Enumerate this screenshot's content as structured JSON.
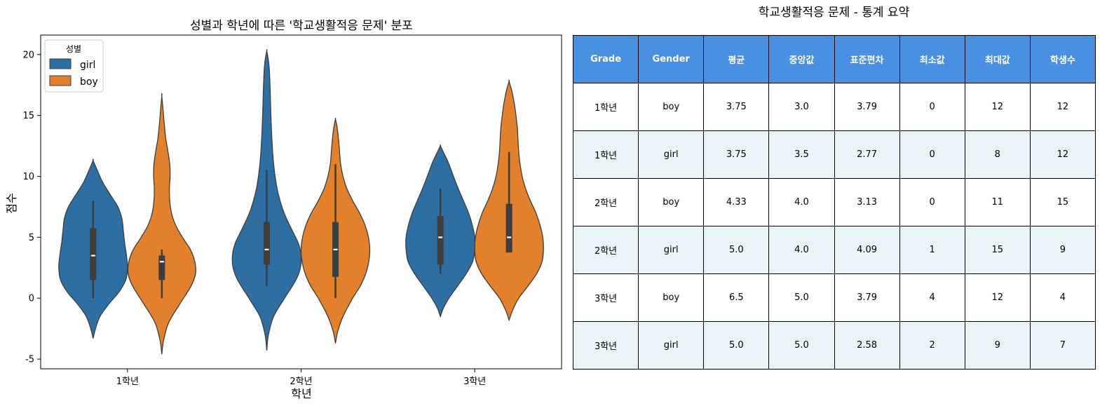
{
  "chart_data": [
    {
      "type": "violin",
      "title": "성별과 학년에 따른 '학교생활적응 문제' 분포",
      "xlabel": "학년",
      "ylabel": "점수",
      "categories": [
        "1학년",
        "2학년",
        "3학년"
      ],
      "ylim": [
        -5.8,
        21.6
      ],
      "yticks": [
        -5,
        0,
        5,
        10,
        15,
        20
      ],
      "grid": false,
      "legend": {
        "title": "성별",
        "placement": "top-left"
      },
      "series": [
        {
          "name": "girl",
          "color": "#2e6fa3",
          "groups": [
            {
              "category": "1학년",
              "min": 0,
              "q1": 1.5,
              "median": 3.5,
              "q3": 5.75,
              "max": 8,
              "kde_range": [
                -3.3,
                11.3
              ],
              "profile": [
                [
                  -3.3,
                  0
                ],
                [
                  -2.5,
                  0.07
                ],
                [
                  -1.5,
                  0.2
                ],
                [
                  -0.5,
                  0.45
                ],
                [
                  0.5,
                  0.75
                ],
                [
                  1.5,
                  0.95
                ],
                [
                  2.5,
                  1.0
                ],
                [
                  3.5,
                  0.97
                ],
                [
                  4.5,
                  0.92
                ],
                [
                  5.5,
                  0.88
                ],
                [
                  6.5,
                  0.84
                ],
                [
                  7.5,
                  0.72
                ],
                [
                  8.5,
                  0.5
                ],
                [
                  9.5,
                  0.28
                ],
                [
                  10.5,
                  0.12
                ],
                [
                  11.3,
                  0
                ]
              ]
            },
            {
              "category": "2학년",
              "min": 1,
              "q1": 2.75,
              "median": 4.0,
              "q3": 6.25,
              "max": 10.5,
              "kde_range": [
                -4.3,
                20.3
              ],
              "profile": [
                [
                  -4.3,
                  0
                ],
                [
                  -3,
                  0.05
                ],
                [
                  -1.5,
                  0.2
                ],
                [
                  0,
                  0.52
                ],
                [
                  1.5,
                  0.85
                ],
                [
                  2.5,
                  0.98
                ],
                [
                  3.5,
                  1.0
                ],
                [
                  4.5,
                  0.92
                ],
                [
                  5.5,
                  0.75
                ],
                [
                  6.5,
                  0.58
                ],
                [
                  7.5,
                  0.44
                ],
                [
                  9,
                  0.3
                ],
                [
                  11,
                  0.2
                ],
                [
                  13,
                  0.15
                ],
                [
                  15,
                  0.12
                ],
                [
                  17,
                  0.1
                ],
                [
                  18.5,
                  0.08
                ],
                [
                  19.5,
                  0.05
                ],
                [
                  20.3,
                  0
                ]
              ]
            },
            {
              "category": "3학년",
              "min": 2,
              "q1": 2.75,
              "median": 5.0,
              "q3": 6.75,
              "max": 9,
              "kde_range": [
                -1.5,
                12.5
              ],
              "profile": [
                [
                  -1.5,
                  0
                ],
                [
                  -0.8,
                  0.09
                ],
                [
                  0,
                  0.25
                ],
                [
                  1,
                  0.5
                ],
                [
                  2,
                  0.75
                ],
                [
                  3,
                  0.94
                ],
                [
                  4,
                  1.0
                ],
                [
                  5,
                  1.0
                ],
                [
                  6,
                  0.93
                ],
                [
                  7,
                  0.82
                ],
                [
                  8,
                  0.67
                ],
                [
                  9,
                  0.52
                ],
                [
                  10,
                  0.38
                ],
                [
                  11,
                  0.25
                ],
                [
                  11.8,
                  0.12
                ],
                [
                  12.5,
                  0
                ]
              ]
            }
          ]
        },
        {
          "name": "boy",
          "color": "#e3802c",
          "groups": [
            {
              "category": "1학년",
              "min": 0,
              "q1": 1.5,
              "median": 3.0,
              "q3": 3.5,
              "max": 4,
              "kde_range": [
                -4.6,
                16.6
              ],
              "profile": [
                [
                  -4.6,
                  0
                ],
                [
                  -3.5,
                  0.05
                ],
                [
                  -2,
                  0.2
                ],
                [
                  -0.5,
                  0.52
                ],
                [
                  1,
                  0.85
                ],
                [
                  2,
                  0.98
                ],
                [
                  3,
                  0.96
                ],
                [
                  4,
                  0.83
                ],
                [
                  5,
                  0.6
                ],
                [
                  6,
                  0.4
                ],
                [
                  7,
                  0.28
                ],
                [
                  8,
                  0.23
                ],
                [
                  9,
                  0.22
                ],
                [
                  10,
                  0.24
                ],
                [
                  11,
                  0.23
                ],
                [
                  12,
                  0.18
                ],
                [
                  13,
                  0.12
                ],
                [
                  14,
                  0.08
                ],
                [
                  15,
                  0.05
                ],
                [
                  16.6,
                  0
                ]
              ]
            },
            {
              "category": "2학년",
              "min": 0,
              "q1": 1.75,
              "median": 4.0,
              "q3": 6.25,
              "max": 11,
              "kde_range": [
                -3.7,
                14.7
              ],
              "profile": [
                [
                  -3.7,
                  0
                ],
                [
                  -2.7,
                  0.07
                ],
                [
                  -1.5,
                  0.22
                ],
                [
                  0,
                  0.5
                ],
                [
                  1,
                  0.72
                ],
                [
                  2,
                  0.88
                ],
                [
                  3,
                  0.97
                ],
                [
                  4,
                  1.0
                ],
                [
                  5,
                  0.96
                ],
                [
                  6,
                  0.86
                ],
                [
                  7,
                  0.7
                ],
                [
                  8,
                  0.5
                ],
                [
                  9,
                  0.33
                ],
                [
                  10,
                  0.22
                ],
                [
                  11,
                  0.15
                ],
                [
                  12,
                  0.12
                ],
                [
                  13,
                  0.09
                ],
                [
                  14,
                  0.05
                ],
                [
                  14.7,
                  0
                ]
              ]
            },
            {
              "category": "3학년",
              "min": 3.75,
              "q1": 3.75,
              "median": 5.0,
              "q3": 7.75,
              "max": 12,
              "kde_range": [
                -1.8,
                17.8
              ],
              "profile": [
                [
                  -1.8,
                  0
                ],
                [
                  -1,
                  0.1
                ],
                [
                  0,
                  0.28
                ],
                [
                  1,
                  0.55
                ],
                [
                  2,
                  0.8
                ],
                [
                  3,
                  0.96
                ],
                [
                  4,
                  1.0
                ],
                [
                  5,
                  0.98
                ],
                [
                  6,
                  0.9
                ],
                [
                  7,
                  0.78
                ],
                [
                  8,
                  0.62
                ],
                [
                  9,
                  0.48
                ],
                [
                  10,
                  0.38
                ],
                [
                  11,
                  0.32
                ],
                [
                  12,
                  0.28
                ],
                [
                  13,
                  0.26
                ],
                [
                  14,
                  0.24
                ],
                [
                  15,
                  0.2
                ],
                [
                  16,
                  0.15
                ],
                [
                  17,
                  0.08
                ],
                [
                  17.8,
                  0
                ]
              ]
            }
          ]
        }
      ]
    },
    {
      "type": "table",
      "title": "학교생활적응 문제 - 통계 요약",
      "columns": [
        "Grade",
        "Gender",
        "평균",
        "중앙값",
        "표준편차",
        "최소값",
        "최대값",
        "학생수"
      ],
      "rows": [
        [
          "1학년",
          "boy",
          "3.75",
          "3.0",
          "3.79",
          "0",
          "12",
          "12"
        ],
        [
          "1학년",
          "girl",
          "3.75",
          "3.5",
          "2.77",
          "0",
          "8",
          "12"
        ],
        [
          "2학년",
          "boy",
          "4.33",
          "4.0",
          "3.13",
          "0",
          "11",
          "15"
        ],
        [
          "2학년",
          "girl",
          "5.0",
          "4.0",
          "4.09",
          "1",
          "15",
          "9"
        ],
        [
          "3학년",
          "boy",
          "6.5",
          "5.0",
          "3.79",
          "4",
          "12",
          "4"
        ],
        [
          "3학년",
          "girl",
          "5.0",
          "5.0",
          "2.58",
          "2",
          "9",
          "7"
        ]
      ],
      "colors": {
        "header": "#4a90e2",
        "row_alt": "#e8f4f8",
        "row": "#ffffff"
      }
    }
  ]
}
